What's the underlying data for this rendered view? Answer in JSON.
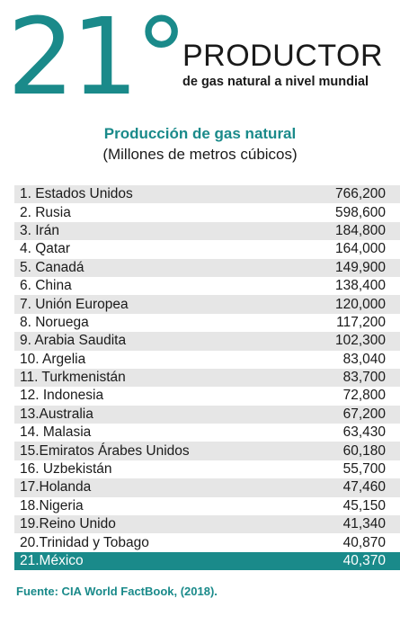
{
  "hero": {
    "rank": "21°",
    "title": "PRODUCTOR",
    "subtitle": "de gas natural a nivel mundial"
  },
  "table": {
    "title": "Producción de gas natural",
    "subtitle": "(Millones de metros cúbicos)",
    "rows": [
      {
        "label": "1.  Estados Unidos",
        "value": "766,200"
      },
      {
        "label": "2.  Rusia",
        "value": "598,600"
      },
      {
        "label": "3.  Irán",
        "value": "184,800"
      },
      {
        "label": "4.  Qatar",
        "value": "164,000"
      },
      {
        "label": "5.  Canadá",
        "value": "149,900"
      },
      {
        "label": "6.  China",
        "value": "138,400"
      },
      {
        "label": "7.  Unión Europea",
        "value": "120,000"
      },
      {
        "label": "8.  Noruega",
        "value": "117,200"
      },
      {
        "label": "9.  Arabia Saudita",
        "value": "102,300"
      },
      {
        "label": "10. Argelia",
        "value": "83,040"
      },
      {
        "label": "11. Turkmenistán",
        "value": "83,700"
      },
      {
        "label": "12. Indonesia",
        "value": "72,800"
      },
      {
        "label": "13.Australia",
        "value": "67,200"
      },
      {
        "label": "14. Malasia",
        "value": "63,430"
      },
      {
        "label": "15.Emiratos Árabes Unidos",
        "value": "60,180"
      },
      {
        "label": "16. Uzbekistán",
        "value": "55,700"
      },
      {
        "label": "17.Holanda",
        "value": "47,460"
      },
      {
        "label": "18.Nigeria",
        "value": "45,150"
      },
      {
        "label": "19.Reino Unido",
        "value": "41,340"
      },
      {
        "label": "20.Trinidad y Tobago",
        "value": "40,870"
      },
      {
        "label": "21.México",
        "value": "40,370"
      }
    ]
  },
  "source": "Fuente: CIA World FactBook, (2018).",
  "colors": {
    "accent": "#1a8a8a",
    "stripe": "#e6e6e6"
  }
}
